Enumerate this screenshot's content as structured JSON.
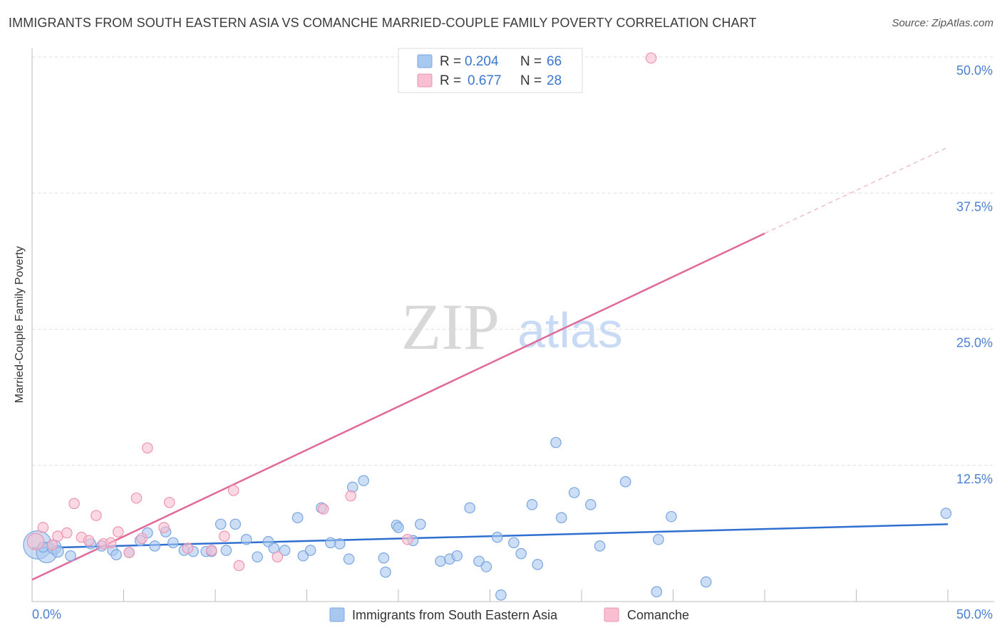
{
  "header": {
    "title": "IMMIGRANTS FROM SOUTH EASTERN ASIA VS COMANCHE MARRIED-COUPLE FAMILY POVERTY CORRELATION CHART",
    "source": "Source: ZipAtlas.com"
  },
  "watermark": {
    "zip": "ZIP",
    "atlas": "atlas"
  },
  "colors": {
    "blue": "#a9c8f0",
    "blue_stroke": "#7aa6e0",
    "blue_line": "#2f6fd0",
    "pink": "#f7bfd0",
    "pink_stroke": "#ee94b2",
    "pink_line": "#e0699a",
    "grid": "#dddddd",
    "axis_text": "#4a7fd4"
  },
  "legend": {
    "r_label": "R =",
    "n_label": "N =",
    "rows": [
      {
        "series": "blue",
        "r": "0.204",
        "n": "66"
      },
      {
        "series": "pink",
        "r": "0.677",
        "n": "28"
      }
    ]
  },
  "chart_data": {
    "type": "scatter",
    "title": "IMMIGRANTS FROM SOUTH EASTERN ASIA VS COMANCHE MARRIED-COUPLE FAMILY POVERTY CORRELATION CHART",
    "xlabel": "",
    "ylabel": "Married-Couple Family Poverty",
    "xlim": [
      0,
      50
    ],
    "ylim": [
      0,
      50
    ],
    "x_tick_labels": [
      {
        "value": 0,
        "label": "0.0%"
      },
      {
        "value": 50,
        "label": "50.0%"
      }
    ],
    "y_tick_labels": [
      {
        "value": 12.5,
        "label": "12.5%"
      },
      {
        "value": 25,
        "label": "25.0%"
      },
      {
        "value": 37.5,
        "label": "37.5%"
      },
      {
        "value": 50,
        "label": "50.0%"
      }
    ],
    "x_minor_ticks": [
      5,
      10,
      15,
      20,
      25,
      30,
      35,
      40,
      45,
      50
    ],
    "series": [
      {
        "name": "Immigrants from South Eastern Asia",
        "color": "blue",
        "r": 0.204,
        "n": 66,
        "trend": {
          "x0": 0,
          "y0": 4.9,
          "x1": 50,
          "y1": 7.1
        },
        "points": [
          [
            0.3,
            5.2,
            2.2
          ],
          [
            0.8,
            4.5,
            1.6
          ],
          [
            1.2,
            5.0,
            1.1
          ],
          [
            1.4,
            4.6,
            0.9
          ],
          [
            2.1,
            4.2,
            0.8
          ],
          [
            3.2,
            5.3,
            0.8
          ],
          [
            3.8,
            5.1,
            0.8
          ],
          [
            4.4,
            4.7,
            0.8
          ],
          [
            4.6,
            4.3,
            0.8
          ],
          [
            5.3,
            4.5,
            0.8
          ],
          [
            5.9,
            5.6,
            0.8
          ],
          [
            6.3,
            6.3,
            0.8
          ],
          [
            6.7,
            5.1,
            0.8
          ],
          [
            7.3,
            6.4,
            0.8
          ],
          [
            7.7,
            5.4,
            0.8
          ],
          [
            8.3,
            4.7,
            0.8
          ],
          [
            8.8,
            4.6,
            0.8
          ],
          [
            9.5,
            4.6,
            0.8
          ],
          [
            9.8,
            4.6,
            0.8
          ],
          [
            10.3,
            7.1,
            0.8
          ],
          [
            10.6,
            4.7,
            0.8
          ],
          [
            11.1,
            7.1,
            0.8
          ],
          [
            11.7,
            5.7,
            0.8
          ],
          [
            12.3,
            4.1,
            0.8
          ],
          [
            12.9,
            5.5,
            0.8
          ],
          [
            13.2,
            4.9,
            0.8
          ],
          [
            13.8,
            4.7,
            0.8
          ],
          [
            14.5,
            7.7,
            0.8
          ],
          [
            14.8,
            4.2,
            0.8
          ],
          [
            15.2,
            4.7,
            0.8
          ],
          [
            15.8,
            8.6,
            0.8
          ],
          [
            16.3,
            5.4,
            0.8
          ],
          [
            16.8,
            5.3,
            0.8
          ],
          [
            17.3,
            3.9,
            0.8
          ],
          [
            17.5,
            10.5,
            0.8
          ],
          [
            18.1,
            11.1,
            0.8
          ],
          [
            19.2,
            4.0,
            0.8
          ],
          [
            19.3,
            2.7,
            0.8
          ],
          [
            19.9,
            7.0,
            0.8
          ],
          [
            20.0,
            6.8,
            0.8
          ],
          [
            20.8,
            5.6,
            0.8
          ],
          [
            21.2,
            7.1,
            0.8
          ],
          [
            22.3,
            3.7,
            0.8
          ],
          [
            22.8,
            3.9,
            0.8
          ],
          [
            23.2,
            4.2,
            0.8
          ],
          [
            23.9,
            8.6,
            0.8
          ],
          [
            24.4,
            3.7,
            0.8
          ],
          [
            24.8,
            3.2,
            0.8
          ],
          [
            25.4,
            5.9,
            0.8
          ],
          [
            25.6,
            0.6,
            0.8
          ],
          [
            26.3,
            5.4,
            0.8
          ],
          [
            26.7,
            4.4,
            0.8
          ],
          [
            27.3,
            8.9,
            0.8
          ],
          [
            27.6,
            3.4,
            0.8
          ],
          [
            28.6,
            14.6,
            0.8
          ],
          [
            28.9,
            7.7,
            0.8
          ],
          [
            29.6,
            10.0,
            0.8
          ],
          [
            30.5,
            8.9,
            0.8
          ],
          [
            31.0,
            5.1,
            0.8
          ],
          [
            32.4,
            11.0,
            0.8
          ],
          [
            34.1,
            0.9,
            0.8
          ],
          [
            34.2,
            5.7,
            0.8
          ],
          [
            34.9,
            7.8,
            0.8
          ],
          [
            36.8,
            1.8,
            0.8
          ],
          [
            49.9,
            8.1,
            0.8
          ],
          [
            0.6,
            5.0,
            0.8
          ]
        ]
      },
      {
        "name": "Comanche",
        "color": "pink",
        "r": 0.677,
        "n": 28,
        "trend": {
          "x0": 0,
          "y0": 2.0,
          "x1": 40,
          "y1": 33.8,
          "dashed_x1": 50,
          "dashed_y1": 41.7
        },
        "points": [
          [
            0.2,
            5.5,
            1.3
          ],
          [
            0.6,
            6.8,
            0.8
          ],
          [
            1.1,
            5.2,
            0.8
          ],
          [
            1.4,
            6.0,
            0.8
          ],
          [
            1.9,
            6.3,
            0.8
          ],
          [
            2.3,
            9.0,
            0.8
          ],
          [
            2.7,
            5.9,
            0.8
          ],
          [
            3.1,
            5.6,
            0.8
          ],
          [
            3.5,
            7.9,
            0.8
          ],
          [
            3.9,
            5.3,
            0.8
          ],
          [
            4.3,
            5.4,
            0.8
          ],
          [
            4.7,
            6.4,
            0.8
          ],
          [
            5.3,
            4.5,
            0.8
          ],
          [
            5.7,
            9.5,
            0.8
          ],
          [
            6.0,
            5.8,
            0.8
          ],
          [
            6.3,
            14.1,
            0.8
          ],
          [
            7.2,
            6.8,
            0.8
          ],
          [
            7.5,
            9.1,
            0.8
          ],
          [
            8.5,
            4.9,
            0.8
          ],
          [
            9.8,
            4.7,
            0.8
          ],
          [
            10.5,
            6.0,
            0.8
          ],
          [
            11.0,
            10.2,
            0.8
          ],
          [
            11.3,
            3.3,
            0.8
          ],
          [
            13.4,
            4.1,
            0.8
          ],
          [
            15.9,
            8.5,
            0.8
          ],
          [
            17.4,
            9.7,
            0.8
          ],
          [
            20.5,
            5.7,
            0.8
          ],
          [
            33.8,
            49.9,
            0.8
          ]
        ]
      }
    ],
    "legend_position": "top-center",
    "grid": true
  }
}
